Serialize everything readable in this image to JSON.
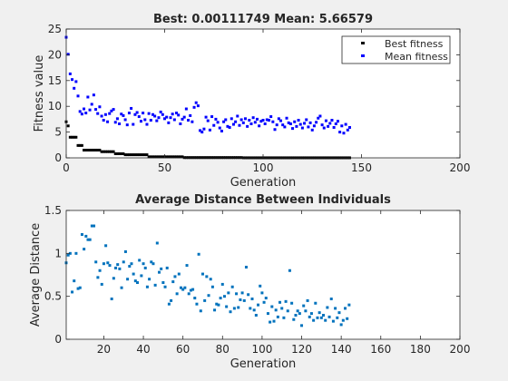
{
  "colors": {
    "figure_bg": "#f0f0f0",
    "axes_bg": "#ffffff",
    "axis_line": "#262626",
    "best": "#000000",
    "mean": "#0000ff",
    "distance": "#0072bd"
  },
  "chart_data": [
    {
      "type": "scatter",
      "title": "Best: 0.00111749 Mean: 5.66579",
      "xlabel": "Generation",
      "ylabel": "Fitness value",
      "xlim": [
        0,
        200
      ],
      "ylim": [
        0,
        25
      ],
      "xticks": [
        "0",
        "50",
        "100",
        "150",
        "200"
      ],
      "yticks": [
        "0",
        "5",
        "10",
        "15",
        "20",
        "25"
      ],
      "grid": false,
      "legend_position": "top-right",
      "series": [
        {
          "name": "Best fitness",
          "color_key": "best",
          "step": {
            "x_start": 0,
            "x_end": 144,
            "breaks": [
              [
                0,
                7.0
              ],
              [
                1,
                6.2
              ],
              [
                2,
                4.0
              ],
              [
                6,
                2.4
              ],
              [
                9,
                1.5
              ],
              [
                18,
                1.2
              ],
              [
                25,
                0.8
              ],
              [
                30,
                0.6
              ],
              [
                42,
                0.2
              ],
              [
                60,
                0.05
              ],
              [
                90,
                0.01
              ]
            ]
          }
        },
        {
          "name": "Mean fitness",
          "color_key": "mean",
          "x": [
            0,
            1,
            2,
            3,
            4,
            5,
            6,
            7,
            8,
            9,
            10,
            11,
            12,
            13,
            14,
            15,
            16,
            17,
            18,
            19,
            20,
            21,
            22,
            23,
            24,
            25,
            26,
            27,
            28,
            29,
            30,
            31,
            32,
            33,
            34,
            35,
            36,
            37,
            38,
            39,
            40,
            41,
            42,
            43,
            44,
            45,
            46,
            47,
            48,
            49,
            50,
            51,
            52,
            53,
            54,
            55,
            56,
            57,
            58,
            59,
            60,
            61,
            62,
            63,
            64,
            65,
            66,
            67,
            68,
            69,
            70,
            71,
            72,
            73,
            74,
            75,
            76,
            77,
            78,
            79,
            80,
            81,
            82,
            83,
            84,
            85,
            86,
            87,
            88,
            89,
            90,
            91,
            92,
            93,
            94,
            95,
            96,
            97,
            98,
            99,
            100,
            101,
            102,
            103,
            104,
            105,
            106,
            107,
            108,
            109,
            110,
            111,
            112,
            113,
            114,
            115,
            116,
            117,
            118,
            119,
            120,
            121,
            122,
            123,
            124,
            125,
            126,
            127,
            128,
            129,
            130,
            131,
            132,
            133,
            134,
            135,
            136,
            137,
            138,
            139,
            140,
            141,
            142,
            143,
            144
          ],
          "values": [
            23.4,
            20.1,
            16.3,
            15.2,
            13.5,
            14.8,
            12.0,
            9.0,
            8.5,
            9.5,
            8.7,
            11.8,
            9.3,
            10.4,
            12.2,
            9.4,
            8.6,
            9.9,
            8.1,
            7.3,
            8.4,
            7.0,
            8.6,
            9.1,
            9.4,
            6.9,
            7.6,
            6.6,
            8.5,
            8.2,
            7.4,
            6.4,
            8.7,
            9.6,
            6.5,
            8.4,
            8.8,
            8.0,
            7.1,
            8.7,
            7.4,
            6.5,
            8.6,
            7.3,
            8.4,
            8.1,
            7.2,
            7.8,
            8.9,
            8.4,
            7.6,
            7.9,
            6.8,
            7.8,
            8.5,
            7.4,
            8.7,
            8.3,
            6.6,
            7.5,
            7.9,
            9.5,
            7.3,
            8.2,
            7.0,
            9.8,
            10.7,
            10.1,
            5.3,
            5.0,
            5.6,
            7.9,
            7.2,
            5.4,
            8.0,
            6.3,
            7.5,
            6.9,
            5.8,
            5.2,
            7.0,
            7.4,
            6.1,
            5.9,
            7.6,
            6.5,
            7.0,
            8.1,
            6.3,
            7.4,
            6.8,
            7.6,
            6.1,
            7.3,
            6.6,
            7.8,
            6.9,
            7.5,
            6.2,
            7.1,
            7.3,
            6.6,
            7.4,
            7.3,
            8.0,
            7.0,
            5.5,
            6.4,
            7.6,
            7.2,
            6.4,
            6.0,
            7.7,
            6.8,
            6.6,
            5.7,
            7.0,
            6.1,
            7.3,
            6.5,
            5.8,
            6.7,
            7.4,
            6.0,
            6.8,
            5.4,
            6.2,
            6.9,
            7.7,
            8.1,
            6.4,
            5.8,
            7.2,
            6.1,
            6.7,
            7.3,
            5.9,
            6.6,
            7.1,
            5.0,
            6.2,
            4.8,
            6.5,
            5.4,
            5.9
          ]
        }
      ]
    },
    {
      "type": "scatter",
      "title": "Average Distance Between Individuals",
      "xlabel": "Generation",
      "ylabel": "Average Distance",
      "xlim": [
        1,
        200
      ],
      "ylim": [
        0,
        1.5
      ],
      "xticks": [
        "20",
        "40",
        "60",
        "80",
        "100",
        "120",
        "140",
        "160",
        "180",
        "200"
      ],
      "yticks": [
        "0",
        "0.5",
        "1",
        "1.5"
      ],
      "grid": false,
      "series": [
        {
          "color_key": "distance",
          "x": [
            1,
            2,
            3,
            4,
            5,
            6,
            7,
            8,
            9,
            10,
            11,
            12,
            13,
            14,
            15,
            16,
            17,
            18,
            19,
            20,
            21,
            22,
            23,
            24,
            25,
            26,
            27,
            28,
            29,
            30,
            31,
            32,
            33,
            34,
            35,
            36,
            37,
            38,
            39,
            40,
            41,
            42,
            43,
            44,
            45,
            46,
            47,
            48,
            49,
            50,
            51,
            52,
            53,
            54,
            55,
            56,
            57,
            58,
            59,
            60,
            61,
            62,
            63,
            64,
            65,
            66,
            67,
            68,
            69,
            70,
            71,
            72,
            73,
            74,
            75,
            76,
            77,
            78,
            79,
            80,
            81,
            82,
            83,
            84,
            85,
            86,
            87,
            88,
            89,
            90,
            91,
            92,
            93,
            94,
            95,
            96,
            97,
            98,
            99,
            100,
            101,
            102,
            103,
            104,
            105,
            106,
            107,
            108,
            109,
            110,
            111,
            112,
            113,
            114,
            115,
            116,
            117,
            118,
            119,
            120,
            121,
            122,
            123,
            124,
            125,
            126,
            127,
            128,
            129,
            130,
            131,
            132,
            133,
            134,
            135,
            136,
            137,
            138,
            139,
            140,
            141,
            142,
            143,
            144
          ],
          "values": [
            0.89,
            0.98,
            1.0,
            0.55,
            0.68,
            1.0,
            0.59,
            0.6,
            1.22,
            1.05,
            1.2,
            1.16,
            1.16,
            1.32,
            1.32,
            0.9,
            0.72,
            0.8,
            0.64,
            0.88,
            1.09,
            0.89,
            0.86,
            0.47,
            0.71,
            0.83,
            0.87,
            0.82,
            0.6,
            0.9,
            1.02,
            0.7,
            0.85,
            0.88,
            0.76,
            0.68,
            0.66,
            0.92,
            0.74,
            0.88,
            0.83,
            0.61,
            0.7,
            0.9,
            0.88,
            0.63,
            1.12,
            0.78,
            0.82,
            0.66,
            0.61,
            0.83,
            0.41,
            0.45,
            0.67,
            0.73,
            0.53,
            0.76,
            0.6,
            0.58,
            0.6,
            0.86,
            0.53,
            0.57,
            0.58,
            0.48,
            0.41,
            0.99,
            0.33,
            0.76,
            0.45,
            0.73,
            0.51,
            0.7,
            0.61,
            0.34,
            0.41,
            0.4,
            0.48,
            0.64,
            0.5,
            0.38,
            0.54,
            0.32,
            0.61,
            0.36,
            0.53,
            0.37,
            0.46,
            0.54,
            0.45,
            0.84,
            0.52,
            0.36,
            0.47,
            0.34,
            0.28,
            0.4,
            0.62,
            0.54,
            0.43,
            0.48,
            0.3,
            0.2,
            0.38,
            0.21,
            0.34,
            0.26,
            0.43,
            0.36,
            0.25,
            0.44,
            0.33,
            0.8,
            0.42,
            0.23,
            0.28,
            0.33,
            0.3,
            0.16,
            0.39,
            0.33,
            0.45,
            0.26,
            0.3,
            0.22,
            0.42,
            0.25,
            0.31,
            0.25,
            0.28,
            0.22,
            0.37,
            0.26,
            0.47,
            0.21,
            0.36,
            0.25,
            0.31,
            0.17,
            0.22,
            0.36,
            0.24,
            0.4
          ]
        }
      ]
    }
  ]
}
